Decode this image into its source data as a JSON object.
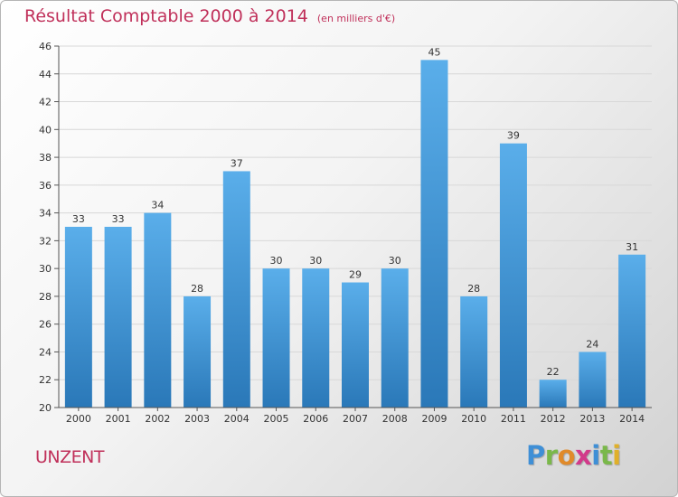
{
  "header": {
    "title": "Résultat Comptable 2000 à 2014",
    "unit_note": "(en milliers d'€)"
  },
  "commune_name": "UNZENT",
  "logo": {
    "text": "Proxiti",
    "icon": "proxiti-logo"
  },
  "colors": {
    "bar_top": "#5aaeea",
    "bar_bottom": "#2a78b8",
    "title": "#c0305a",
    "grid": "#d8d8d8"
  },
  "chart_data": {
    "type": "bar",
    "title": "Résultat Comptable 2000 à 2014",
    "subtitle": "(en milliers d'€)",
    "xlabel": "",
    "ylabel": "",
    "categories": [
      "2000",
      "2001",
      "2002",
      "2003",
      "2004",
      "2005",
      "2006",
      "2007",
      "2008",
      "2009",
      "2010",
      "2011",
      "2012",
      "2013",
      "2014"
    ],
    "values": [
      33,
      33,
      34,
      28,
      37,
      30,
      30,
      29,
      30,
      45,
      28,
      39,
      22,
      24,
      31
    ],
    "ylim": [
      20,
      46
    ],
    "yticks": [
      20,
      22,
      24,
      26,
      28,
      30,
      32,
      34,
      36,
      38,
      40,
      42,
      44,
      46
    ],
    "grid": true,
    "data_labels": true
  }
}
